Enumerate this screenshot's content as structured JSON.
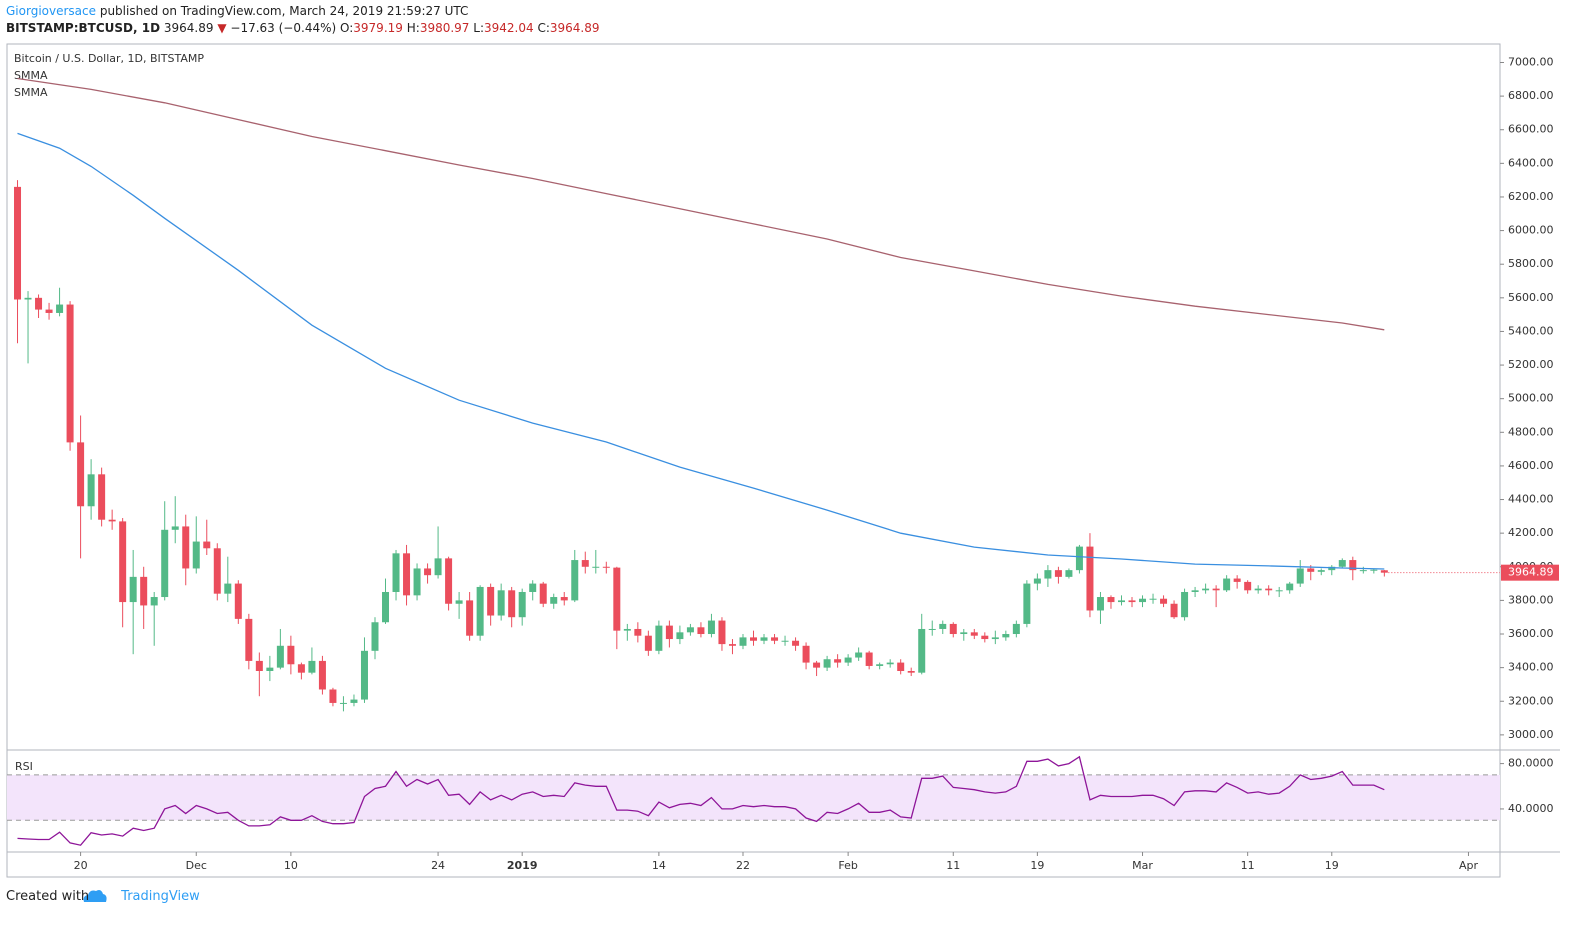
{
  "header": {
    "author": "Giorgioversace",
    "published": "published on TradingView.com, March 24, 2019 21:59:27 UTC",
    "symbol": "BITSTAMP:BTCUSD, 1D",
    "arrow": "▼",
    "change": "−17.63 (−0.44%)",
    "o": "O:",
    "h": "H:",
    "l": "L:",
    "c": "C:"
  },
  "footer": {
    "created": "Created with",
    "brand": "TradingView"
  },
  "chart_data": {
    "type": "candlestick",
    "title": "Bitcoin / U.S. Dollar, 1D, BITSTAMP",
    "up_color": "#53b987",
    "down_color": "#eb4d5c",
    "grid": false,
    "x": [
      "2018-11-14",
      "2018-11-15",
      "2018-11-16",
      "2018-11-17",
      "2018-11-18",
      "2018-11-19",
      "2018-11-20",
      "2018-11-21",
      "2018-11-22",
      "2018-11-23",
      "2018-11-24",
      "2018-11-25",
      "2018-11-26",
      "2018-11-27",
      "2018-11-28",
      "2018-11-29",
      "2018-11-30",
      "2018-12-01",
      "2018-12-02",
      "2018-12-03",
      "2018-12-04",
      "2018-12-05",
      "2018-12-06",
      "2018-12-07",
      "2018-12-08",
      "2018-12-09",
      "2018-12-10",
      "2018-12-11",
      "2018-12-12",
      "2018-12-13",
      "2018-12-14",
      "2018-12-15",
      "2018-12-16",
      "2018-12-17",
      "2018-12-18",
      "2018-12-19",
      "2018-12-20",
      "2018-12-21",
      "2018-12-22",
      "2018-12-23",
      "2018-12-24",
      "2018-12-25",
      "2018-12-26",
      "2018-12-27",
      "2018-12-28",
      "2018-12-29",
      "2018-12-30",
      "2018-12-31",
      "2019-01-01",
      "2019-01-02",
      "2019-01-03",
      "2019-01-04",
      "2019-01-05",
      "2019-01-06",
      "2019-01-07",
      "2019-01-08",
      "2019-01-09",
      "2019-01-10",
      "2019-01-11",
      "2019-01-12",
      "2019-01-13",
      "2019-01-14",
      "2019-01-15",
      "2019-01-16",
      "2019-01-17",
      "2019-01-18",
      "2019-01-19",
      "2019-01-20",
      "2019-01-21",
      "2019-01-22",
      "2019-01-23",
      "2019-01-24",
      "2019-01-25",
      "2019-01-26",
      "2019-01-27",
      "2019-01-28",
      "2019-01-29",
      "2019-01-30",
      "2019-01-31",
      "2019-02-01",
      "2019-02-02",
      "2019-02-03",
      "2019-02-04",
      "2019-02-05",
      "2019-02-06",
      "2019-02-07",
      "2019-02-08",
      "2019-02-09",
      "2019-02-10",
      "2019-02-11",
      "2019-02-12",
      "2019-02-13",
      "2019-02-14",
      "2019-02-15",
      "2019-02-16",
      "2019-02-17",
      "2019-02-18",
      "2019-02-19",
      "2019-02-20",
      "2019-02-21",
      "2019-02-22",
      "2019-02-23",
      "2019-02-24",
      "2019-02-25",
      "2019-02-26",
      "2019-02-27",
      "2019-02-28",
      "2019-03-01",
      "2019-03-02",
      "2019-03-03",
      "2019-03-04",
      "2019-03-05",
      "2019-03-06",
      "2019-03-07",
      "2019-03-08",
      "2019-03-09",
      "2019-03-10",
      "2019-03-11",
      "2019-03-12",
      "2019-03-13",
      "2019-03-14",
      "2019-03-15",
      "2019-03-16",
      "2019-03-17",
      "2019-03-18",
      "2019-03-19",
      "2019-03-20",
      "2019-03-21",
      "2019-03-22",
      "2019-03-23",
      "2019-03-24"
    ],
    "open": [
      6260,
      5590,
      5600,
      5530,
      5510,
      5560,
      4740,
      4360,
      4550,
      4280,
      4270,
      3790,
      3940,
      3770,
      3820,
      4220,
      4240,
      3990,
      4150,
      4110,
      3840,
      3900,
      3690,
      3440,
      3380,
      3400,
      3530,
      3420,
      3370,
      3440,
      3270,
      3190,
      3190,
      3210,
      3500,
      3670,
      3850,
      4080,
      3830,
      3990,
      3950,
      4050,
      3780,
      3800,
      3590,
      3880,
      3710,
      3860,
      3700,
      3850,
      3900,
      3780,
      3820,
      3800,
      4040,
      4000,
      4000,
      3995,
      3620,
      3630,
      3590,
      3500,
      3650,
      3570,
      3610,
      3640,
      3600,
      3680,
      3540,
      3530,
      3580,
      3560,
      3580,
      3560,
      3560,
      3530,
      3430,
      3400,
      3450,
      3430,
      3460,
      3490,
      3410,
      3420,
      3430,
      3380,
      3370,
      3630,
      3630,
      3660,
      3600,
      3610,
      3590,
      3570,
      3580,
      3600,
      3660,
      3900,
      3930,
      3980,
      3940,
      3980,
      4120,
      3740,
      3820,
      3790,
      3800,
      3790,
      3810,
      3810,
      3780,
      3700,
      3850,
      3860,
      3870,
      3860,
      3930,
      3910,
      3860,
      3870,
      3860,
      3860,
      3900,
      3990,
      3970,
      3980,
      4000,
      4040,
      3980,
      3980,
      3979.19
    ],
    "high": [
      6300,
      5640,
      5620,
      5570,
      5660,
      5580,
      4900,
      4640,
      4590,
      4340,
      4290,
      4100,
      4000,
      3850,
      4390,
      4420,
      4310,
      4300,
      4280,
      4140,
      4060,
      3920,
      3720,
      3490,
      3470,
      3630,
      3590,
      3430,
      3520,
      3470,
      3280,
      3230,
      3240,
      3580,
      3700,
      3930,
      4100,
      4130,
      4020,
      4020,
      4240,
      4060,
      3850,
      3850,
      3890,
      3900,
      3900,
      3880,
      3870,
      3920,
      3910,
      3840,
      3850,
      4100,
      4090,
      4100,
      4030,
      4000,
      3660,
      3670,
      3620,
      3680,
      3680,
      3650,
      3660,
      3670,
      3720,
      3700,
      3570,
      3600,
      3620,
      3600,
      3600,
      3590,
      3580,
      3550,
      3440,
      3470,
      3480,
      3480,
      3520,
      3500,
      3430,
      3450,
      3450,
      3400,
      3720,
      3680,
      3680,
      3670,
      3630,
      3630,
      3610,
      3620,
      3620,
      3680,
      3920,
      3960,
      4010,
      4000,
      3990,
      4130,
      4200,
      3850,
      3830,
      3830,
      3820,
      3830,
      3840,
      3830,
      3800,
      3870,
      3880,
      3900,
      3890,
      3950,
      3950,
      3920,
      3890,
      3890,
      3880,
      3910,
      4040,
      4010,
      3990,
      4010,
      4050,
      4060,
      4000,
      3990,
      3980.97
    ],
    "low": [
      5330,
      5210,
      5480,
      5470,
      5490,
      4690,
      4050,
      4280,
      4240,
      4220,
      3640,
      3480,
      3630,
      3530,
      3800,
      4140,
      3890,
      3960,
      4070,
      3800,
      3790,
      3660,
      3390,
      3230,
      3320,
      3390,
      3360,
      3330,
      3360,
      3240,
      3170,
      3140,
      3170,
      3190,
      3450,
      3660,
      3800,
      3770,
      3800,
      3900,
      3930,
      3740,
      3690,
      3560,
      3560,
      3650,
      3680,
      3640,
      3650,
      3800,
      3760,
      3750,
      3770,
      3790,
      3960,
      3960,
      3960,
      3510,
      3560,
      3550,
      3470,
      3480,
      3520,
      3540,
      3590,
      3580,
      3580,
      3500,
      3480,
      3510,
      3530,
      3540,
      3540,
      3530,
      3500,
      3390,
      3350,
      3380,
      3400,
      3410,
      3440,
      3390,
      3390,
      3400,
      3360,
      3350,
      3360,
      3590,
      3600,
      3580,
      3560,
      3570,
      3550,
      3540,
      3560,
      3580,
      3640,
      3860,
      3880,
      3900,
      3930,
      3960,
      3700,
      3660,
      3750,
      3770,
      3760,
      3760,
      3780,
      3760,
      3690,
      3680,
      3820,
      3840,
      3760,
      3850,
      3870,
      3840,
      3840,
      3830,
      3820,
      3840,
      3880,
      3920,
      3950,
      3950,
      3990,
      3920,
      3960,
      3960,
      3942.04
    ],
    "close": [
      5590,
      5600,
      5530,
      5510,
      5560,
      4740,
      4360,
      4550,
      4280,
      4270,
      3790,
      3940,
      3770,
      3820,
      4220,
      4240,
      3990,
      4150,
      4110,
      3840,
      3900,
      3690,
      3440,
      3380,
      3400,
      3530,
      3420,
      3370,
      3440,
      3270,
      3190,
      3190,
      3210,
      3500,
      3670,
      3850,
      4080,
      3830,
      3990,
      3950,
      4050,
      3780,
      3800,
      3590,
      3880,
      3710,
      3860,
      3700,
      3850,
      3900,
      3780,
      3820,
      3800,
      4040,
      4000,
      4000,
      3995,
      3620,
      3630,
      3590,
      3500,
      3650,
      3570,
      3610,
      3640,
      3600,
      3680,
      3540,
      3530,
      3580,
      3560,
      3580,
      3560,
      3560,
      3530,
      3430,
      3400,
      3450,
      3430,
      3460,
      3490,
      3410,
      3420,
      3430,
      3380,
      3370,
      3630,
      3630,
      3660,
      3600,
      3610,
      3590,
      3570,
      3580,
      3600,
      3660,
      3900,
      3930,
      3980,
      3940,
      3980,
      4120,
      3740,
      3820,
      3790,
      3800,
      3790,
      3810,
      3810,
      3780,
      3700,
      3850,
      3860,
      3870,
      3860,
      3930,
      3910,
      3860,
      3870,
      3860,
      3860,
      3900,
      3990,
      3970,
      3980,
      4000,
      4040,
      3980,
      3980,
      3982.52,
      3964.89
    ],
    "overlays": [
      {
        "name": "SMMA",
        "color": "#a8626e",
        "x": [
          "2018-11-14",
          "2018-11-21",
          "2018-11-28",
          "2018-12-05",
          "2018-12-12",
          "2018-12-19",
          "2018-12-26",
          "2019-01-02",
          "2019-01-09",
          "2019-01-16",
          "2019-01-23",
          "2019-01-30",
          "2019-02-06",
          "2019-02-13",
          "2019-02-20",
          "2019-02-27",
          "2019-03-06",
          "2019-03-13",
          "2019-03-20",
          "2019-03-24"
        ],
        "values": [
          6905,
          6840,
          6760,
          6660,
          6560,
          6475,
          6390,
          6310,
          6220,
          6130,
          6040,
          5950,
          5840,
          5760,
          5680,
          5610,
          5550,
          5500,
          5450,
          5410
        ]
      },
      {
        "name": "SMMA",
        "color": "#3a8fe0",
        "x": [
          "2018-11-14",
          "2018-11-18",
          "2018-11-21",
          "2018-11-25",
          "2018-11-28",
          "2018-12-05",
          "2018-12-12",
          "2018-12-19",
          "2018-12-26",
          "2019-01-02",
          "2019-01-09",
          "2019-01-16",
          "2019-01-23",
          "2019-01-30",
          "2019-02-06",
          "2019-02-13",
          "2019-02-20",
          "2019-02-27",
          "2019-03-06",
          "2019-03-13",
          "2019-03-20",
          "2019-03-24"
        ],
        "values": [
          6578,
          6490,
          6382,
          6210,
          6073,
          5764,
          5437,
          5181,
          4991,
          4855,
          4742,
          4593,
          4468,
          4337,
          4200,
          4117,
          4070,
          4046,
          4016,
          4005,
          3993,
          3987
        ]
      }
    ],
    "xlim": [
      "2018-11-13",
      "2019-04-04"
    ],
    "xticks": [
      {
        "value": "2018-11-20",
        "label": "20"
      },
      {
        "value": "2018-12-01",
        "label": "Dec"
      },
      {
        "value": "2018-12-10",
        "label": "10"
      },
      {
        "value": "2018-12-24",
        "label": "24"
      },
      {
        "value": "2019-01-01",
        "label": "2019"
      },
      {
        "value": "2019-01-14",
        "label": "14"
      },
      {
        "value": "2019-01-22",
        "label": "22"
      },
      {
        "value": "2019-02-01",
        "label": "Feb"
      },
      {
        "value": "2019-02-11",
        "label": "11"
      },
      {
        "value": "2019-02-19",
        "label": "19"
      },
      {
        "value": "2019-03-01",
        "label": "Mar"
      },
      {
        "value": "2019-03-11",
        "label": "11"
      },
      {
        "value": "2019-03-19",
        "label": "19"
      },
      {
        "value": "2019-04-01",
        "label": "Apr"
      }
    ],
    "ylim": [
      2910,
      7110
    ],
    "yticks": [
      {
        "value": 3000,
        "label": "3000.00"
      },
      {
        "value": 3200,
        "label": "3200.00"
      },
      {
        "value": 3400,
        "label": "3400.00"
      },
      {
        "value": 3600,
        "label": "3600.00"
      },
      {
        "value": 3800,
        "label": "3800.00"
      },
      {
        "value": 4000,
        "label": "4000.00"
      },
      {
        "value": 4200,
        "label": "4200.00"
      },
      {
        "value": 4400,
        "label": "4400.00"
      },
      {
        "value": 4600,
        "label": "4600.00"
      },
      {
        "value": 4800,
        "label": "4800.00"
      },
      {
        "value": 5000,
        "label": "5000.00"
      },
      {
        "value": 5200,
        "label": "5200.00"
      },
      {
        "value": 5400,
        "label": "5400.00"
      },
      {
        "value": 5600,
        "label": "5600.00"
      },
      {
        "value": 5800,
        "label": "5800.00"
      },
      {
        "value": 6000,
        "label": "6000.00"
      },
      {
        "value": 6200,
        "label": "6200.00"
      },
      {
        "value": 6400,
        "label": "6400.00"
      },
      {
        "value": 6600,
        "label": "6600.00"
      },
      {
        "value": 6800,
        "label": "6800.00"
      },
      {
        "value": 7000,
        "label": "7000.00"
      }
    ],
    "rsi": {
      "name": "RSI",
      "color": "#8e1599",
      "band_color": "#f3e4fb",
      "bands": [
        30,
        70
      ],
      "ylim": [
        2,
        92
      ],
      "yticks": [
        {
          "value": 80,
          "label": "80.0000"
        },
        {
          "value": 40,
          "label": "40.0000"
        }
      ],
      "values": [
        14,
        13.5,
        13,
        13,
        19.5,
        10,
        8,
        19,
        17,
        18,
        16,
        23,
        21,
        23,
        40,
        43,
        36,
        43,
        40,
        36,
        37,
        30,
        25,
        25,
        26,
        33,
        30,
        30,
        34,
        29,
        27,
        27,
        28,
        51,
        58,
        60,
        73,
        60,
        66,
        62,
        66,
        52,
        53,
        44,
        55,
        48,
        52,
        48,
        53,
        55,
        51,
        52,
        51,
        63,
        61,
        60,
        60,
        39,
        39,
        38,
        34,
        46,
        41,
        44,
        45,
        43,
        50,
        40,
        40,
        43,
        42,
        43,
        42,
        42,
        40,
        32,
        29,
        37,
        36,
        40,
        45,
        37,
        37,
        39,
        33,
        32,
        67,
        67,
        69,
        59,
        58,
        57,
        55,
        54,
        55,
        60,
        82,
        82,
        84,
        78,
        80,
        86,
        48,
        52,
        51,
        51,
        51,
        52,
        52,
        49,
        43,
        55,
        56,
        56,
        55,
        63,
        59,
        54,
        55,
        53,
        54,
        60,
        70,
        66,
        67,
        69,
        73,
        61,
        61,
        61,
        57
      ]
    }
  }
}
